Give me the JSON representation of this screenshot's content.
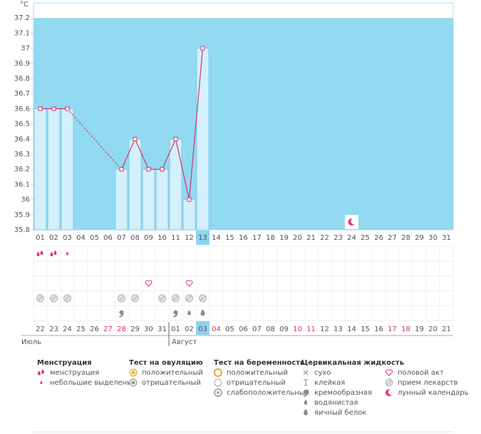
{
  "chart_data": {
    "type": "line",
    "unit": "°C",
    "categories": [
      "01",
      "02",
      "03",
      "04",
      "05",
      "06",
      "07",
      "08",
      "09",
      "10",
      "11",
      "12",
      "13",
      "14",
      "15",
      "16",
      "17",
      "18",
      "19",
      "20",
      "21",
      "22",
      "23",
      "24",
      "25",
      "26",
      "27",
      "28",
      "29",
      "30",
      "31"
    ],
    "values": [
      36.6,
      36.6,
      36.6,
      null,
      null,
      null,
      36.2,
      36.4,
      36.2,
      36.2,
      36.4,
      36.0,
      37.0,
      null,
      null,
      null,
      null,
      null,
      null,
      null,
      null,
      null,
      null,
      null,
      null,
      null,
      null,
      null,
      null,
      null,
      null
    ],
    "ylim": [
      35.8,
      37.3
    ],
    "yticks": [
      35.8,
      35.9,
      36,
      36.1,
      36.2,
      36.3,
      36.4,
      36.5,
      36.6,
      36.7,
      36.8,
      36.9,
      37,
      37.1,
      37.2
    ],
    "highlight": "13",
    "colors": {
      "background": "#92d9f2",
      "bar": "#d3f0fc",
      "bar_edge": "#7fcbea",
      "line": "#d6336c",
      "highlight": "#8fd3ef",
      "red": "#d6336c"
    },
    "cycle_days": [
      "22",
      "23",
      "24",
      "25",
      "26",
      "27",
      "28",
      "29",
      "30",
      "31",
      "01",
      "02",
      "03",
      "04",
      "05",
      "06",
      "07",
      "08",
      "09",
      "10",
      "11",
      "12",
      "13",
      "14",
      "15",
      "16",
      "17",
      "18",
      "19",
      "20",
      "21"
    ],
    "red_days": [
      "27",
      "28",
      "04",
      "10",
      "11",
      "17",
      "18"
    ],
    "months": [
      {
        "label": "Июль",
        "start": "22"
      },
      {
        "label": "Август",
        "start": "01"
      }
    ],
    "markers": {
      "menstruation": [
        "01",
        "02"
      ],
      "spotting": [
        "03"
      ],
      "intercourse": [
        "09",
        "12"
      ],
      "medication": [
        "01",
        "02",
        "03",
        "07",
        "08",
        "10",
        "11",
        "12",
        "13"
      ],
      "creamy": [
        "07",
        "11"
      ],
      "watery": [
        "12"
      ],
      "egg_white": [
        "13"
      ],
      "lunar": [
        "24"
      ]
    }
  },
  "legend": [
    {
      "title": "Менструация",
      "items": [
        "менструация",
        "небольшие выделения"
      ]
    },
    {
      "title": "Тест на овуляцию",
      "items": [
        "положительный",
        "отрицательный"
      ]
    },
    {
      "title": "Тест на беременность",
      "items": [
        "положительный",
        "отрицательный",
        "слабоположительный"
      ]
    },
    {
      "title": "Цервикальная жидкость",
      "items": [
        "сухо",
        "клейкая",
        "кремообразная",
        "водянистая",
        "яичный белок"
      ]
    },
    {
      "items": [
        "половой акт",
        "прием лекарств",
        "лунный календарь"
      ]
    }
  ]
}
